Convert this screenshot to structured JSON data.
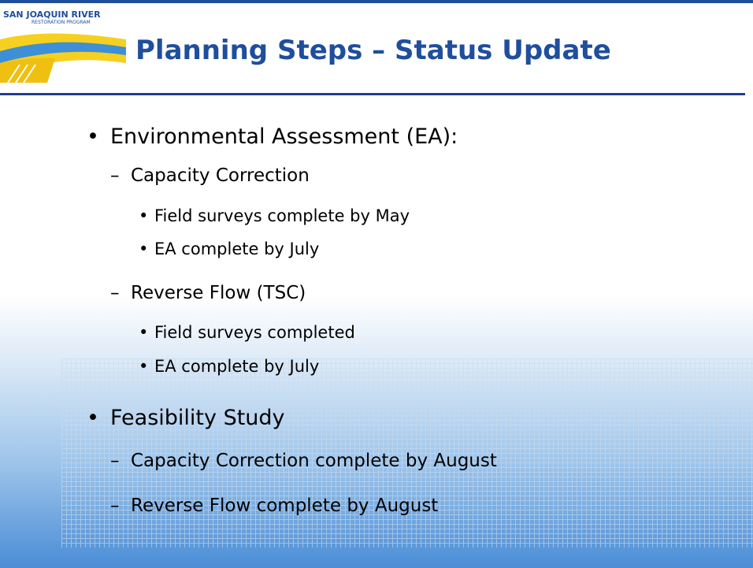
{
  "header": {
    "logo_line1": "SAN JOAQUIN RIVER",
    "logo_line2": "RESTORATION PROGRAM",
    "title": "Planning Steps – Status Update"
  },
  "bullets": [
    {
      "text": "Environmental Assessment (EA):",
      "items": [
        {
          "text": "Capacity Correction",
          "items": [
            "Field surveys complete by May",
            "EA complete by July"
          ]
        },
        {
          "text": "Reverse Flow (TSC)",
          "items": [
            "Field surveys completed",
            "EA complete by July"
          ]
        }
      ]
    },
    {
      "text": "Feasibility Study",
      "items": [
        {
          "text": "Capacity Correction complete by August",
          "items": []
        },
        {
          "text": "Reverse Flow complete by August",
          "items": []
        }
      ]
    }
  ]
}
